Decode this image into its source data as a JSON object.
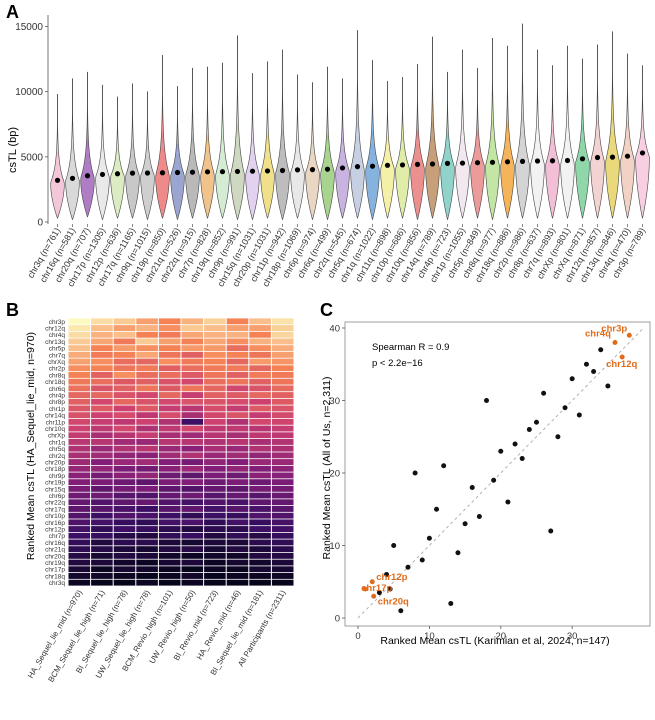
{
  "chart_data": [
    {
      "panel": "A",
      "type": "violin",
      "ylabel": "csTL (bp)",
      "xlabel": "",
      "ylim": [
        0,
        15500
      ],
      "yticks": [
        0,
        5000,
        10000,
        15000
      ],
      "categories": [
        "chr3q (n=761)",
        "chr16q (n=581)",
        "chr20q (n=707)",
        "chr17p (n=1305)",
        "chr12p (n=636)",
        "chr17q (n=1165)",
        "chr9q (n=1015)",
        "chr19p (n=850)",
        "chr21q (n=526)",
        "chr22q (n=915)",
        "chr7p (n=828)",
        "chr19q (n=852)",
        "chr9p (n=991)",
        "chr15q (n=1031)",
        "chr20p (n=1031)",
        "chr11p (n=942)",
        "chr18p (n=1069)",
        "chr6p (n=974)",
        "chr6q (n=499)",
        "chr2q (n=545)",
        "chr5q (n=674)",
        "chr1q (n=1022)",
        "chr11q (n=898)",
        "chr10p (n=686)",
        "chr10q (n=856)",
        "chr14q (n=789)",
        "chr4p (n=723)",
        "chr1p (n=1055)",
        "chr5p (n=849)",
        "chr8q (n=977)",
        "chr18q (n=886)",
        "chr2p (n=986)",
        "chr8p (n=637)",
        "chr7q (n=893)",
        "chrXp (n=801)",
        "chrXq (n=871)",
        "chr12q (n=857)",
        "chr13q (n=846)",
        "chr4q (n=470)",
        "chr3p (n=789)"
      ],
      "colors": [
        "#f4c6da",
        "#d9d9d9",
        "#b07cc6",
        "#e9e9e9",
        "#dcecc2",
        "#c8c8c8",
        "#cfcfcf",
        "#ef8a8a",
        "#9aa6d1",
        "#b9b9b9",
        "#f0c38a",
        "#d4ecd4",
        "#cfd8c0",
        "#e2d2ef",
        "#f0e08a",
        "#bdbdbd",
        "#e8e8e8",
        "#e9d7c4",
        "#a9d48f",
        "#c9b3e0",
        "#c6d0e2",
        "#86b3de",
        "#f4f0a8",
        "#e0eda8",
        "#ec8f8f",
        "#c7a07a",
        "#8fd3cb",
        "#f2e8f0",
        "#ec9a9a",
        "#c4e6a4",
        "#f6b45a",
        "#d4d4d4",
        "#f2f2f2",
        "#f3bfd6",
        "#f2f2f2",
        "#8fd6a9",
        "#f3d2d2",
        "#e9d97a",
        "#f2d2c4",
        "#f7cfe0"
      ],
      "medians": [
        3200,
        3350,
        3550,
        3650,
        3700,
        3750,
        3760,
        3780,
        3800,
        3820,
        3850,
        3860,
        3880,
        3900,
        3920,
        3950,
        4000,
        4020,
        4050,
        4150,
        4250,
        4280,
        4350,
        4380,
        4420,
        4450,
        4500,
        4520,
        4550,
        4580,
        4620,
        4650,
        4680,
        4700,
        4720,
        4850,
        4950,
        4980,
        5050,
        5300
      ],
      "max": [
        9800,
        11000,
        11500,
        10500,
        9600,
        10600,
        10000,
        12800,
        10400,
        11800,
        11900,
        12200,
        14300,
        11400,
        12300,
        13200,
        11300,
        10700,
        11900,
        11000,
        14700,
        12400,
        10800,
        11100,
        12100,
        14200,
        11500,
        13200,
        11800,
        14100,
        13500,
        15200,
        13200,
        12000,
        13500,
        12500,
        13600,
        14600,
        12900,
        12000
      ],
      "min": [
        300,
        200,
        400,
        200,
        300,
        300,
        200,
        300,
        200,
        300,
        300,
        300,
        200,
        200,
        300,
        200,
        300,
        200,
        200,
        300,
        300,
        200,
        300,
        300,
        200,
        300,
        200,
        300,
        300,
        200,
        300,
        300,
        300,
        300,
        300,
        300,
        300,
        300,
        300,
        300
      ]
    },
    {
      "panel": "B",
      "type": "heatmap",
      "ylabel": "Ranked Mean csTL (HA_Sequel_lie_mid, n=970)",
      "rows": [
        "chr3p",
        "chr12q",
        "chr4q",
        "chr13q",
        "chr5p",
        "chr7q",
        "chrXq",
        "chr2p",
        "chr8q",
        "chr18q",
        "chr6q",
        "chr4p",
        "chr8p",
        "chr1p",
        "chr14q",
        "chr11p",
        "chr10q",
        "chrXp",
        "chr1q",
        "chr5q",
        "chr2q",
        "chr20p",
        "chr18p",
        "chr9p",
        "chr19p",
        "chr15q",
        "chr6p",
        "chr22q",
        "chr17q",
        "chr10p",
        "chr16p",
        "chr12p",
        "chr7p",
        "chr16q",
        "chr21q",
        "chr20q",
        "chr19q",
        "chr17p",
        "chr18q",
        "chr3q"
      ],
      "columns": [
        "HA_Sequel_lie_mid (n=970)",
        "BCM_Sequel_lie_high (n=71)",
        "BI_Sequel_lie_high (n=78)",
        "UW_Sequel_lie_high (n=78)",
        "BCM_Revio_high (n=101)",
        "UW_Revio_high (n=50)",
        "BI_Revio_mid (n=723)",
        "HA_Revio_mid (n=46)",
        "BI_Sequel_lie_mid (n=181)",
        "All Participants (n=2311)"
      ],
      "values": [
        [
          1.0,
          0.95,
          0.92,
          0.85,
          0.8,
          0.88,
          0.93,
          0.8,
          0.9,
          0.96
        ],
        [
          0.97,
          0.9,
          0.85,
          0.88,
          0.82,
          0.92,
          0.9,
          0.85,
          0.85,
          0.93
        ],
        [
          0.95,
          0.88,
          0.9,
          0.8,
          0.78,
          0.86,
          0.88,
          0.88,
          0.8,
          0.94
        ],
        [
          0.92,
          0.86,
          0.78,
          0.92,
          0.85,
          0.8,
          0.86,
          0.82,
          0.88,
          0.9
        ],
        [
          0.9,
          0.8,
          0.84,
          0.82,
          0.8,
          0.84,
          0.84,
          0.74,
          0.82,
          0.87
        ],
        [
          0.87,
          0.78,
          0.8,
          0.86,
          0.76,
          0.7,
          0.82,
          0.8,
          0.76,
          0.85
        ],
        [
          0.85,
          0.82,
          0.74,
          0.72,
          0.82,
          0.78,
          0.8,
          0.72,
          0.84,
          0.83
        ],
        [
          0.82,
          0.8,
          0.76,
          0.78,
          0.7,
          0.74,
          0.78,
          0.78,
          0.72,
          0.8
        ],
        [
          0.8,
          0.7,
          0.82,
          0.74,
          0.74,
          0.68,
          0.76,
          0.7,
          0.78,
          0.78
        ],
        [
          0.77,
          0.74,
          0.68,
          0.7,
          0.66,
          0.62,
          0.74,
          0.76,
          0.7,
          0.76
        ],
        [
          0.75,
          0.66,
          0.7,
          0.76,
          0.68,
          0.76,
          0.72,
          0.62,
          0.66,
          0.73
        ],
        [
          0.72,
          0.72,
          0.66,
          0.62,
          0.72,
          0.58,
          0.7,
          0.68,
          0.72,
          0.7
        ],
        [
          0.7,
          0.62,
          0.72,
          0.66,
          0.62,
          0.66,
          0.66,
          0.64,
          0.6,
          0.68
        ],
        [
          0.67,
          0.68,
          0.6,
          0.68,
          0.58,
          0.55,
          0.64,
          0.58,
          0.68,
          0.66
        ],
        [
          0.65,
          0.6,
          0.64,
          0.56,
          0.64,
          0.5,
          0.62,
          0.66,
          0.58,
          0.63
        ],
        [
          0.62,
          0.58,
          0.56,
          0.6,
          0.52,
          0.2,
          0.6,
          0.52,
          0.62,
          0.61
        ],
        [
          0.6,
          0.56,
          0.62,
          0.52,
          0.56,
          0.62,
          0.56,
          0.56,
          0.54,
          0.58
        ],
        [
          0.57,
          0.5,
          0.54,
          0.58,
          0.5,
          0.48,
          0.54,
          0.5,
          0.56,
          0.56
        ],
        [
          0.55,
          0.54,
          0.48,
          0.46,
          0.54,
          0.54,
          0.52,
          0.54,
          0.5,
          0.53
        ],
        [
          0.52,
          0.46,
          0.52,
          0.54,
          0.46,
          0.42,
          0.5,
          0.46,
          0.52,
          0.51
        ],
        [
          0.5,
          0.48,
          0.44,
          0.42,
          0.48,
          0.52,
          0.46,
          0.48,
          0.44,
          0.48
        ],
        [
          0.47,
          0.4,
          0.46,
          0.48,
          0.4,
          0.36,
          0.44,
          0.4,
          0.46,
          0.46
        ],
        [
          0.45,
          0.44,
          0.38,
          0.36,
          0.42,
          0.46,
          0.4,
          0.44,
          0.4,
          0.43
        ],
        [
          0.42,
          0.36,
          0.42,
          0.44,
          0.34,
          0.3,
          0.38,
          0.34,
          0.42,
          0.41
        ],
        [
          0.4,
          0.38,
          0.34,
          0.3,
          0.38,
          0.4,
          0.34,
          0.38,
          0.34,
          0.38
        ],
        [
          0.37,
          0.3,
          0.36,
          0.38,
          0.3,
          0.26,
          0.32,
          0.3,
          0.36,
          0.36
        ],
        [
          0.35,
          0.34,
          0.28,
          0.26,
          0.32,
          0.34,
          0.28,
          0.32,
          0.28,
          0.33
        ],
        [
          0.32,
          0.26,
          0.3,
          0.32,
          0.26,
          0.22,
          0.26,
          0.24,
          0.3,
          0.31
        ],
        [
          0.3,
          0.28,
          0.24,
          0.2,
          0.28,
          0.3,
          0.22,
          0.28,
          0.24,
          0.28
        ],
        [
          0.27,
          0.2,
          0.26,
          0.24,
          0.2,
          0.16,
          0.2,
          0.18,
          0.26,
          0.26
        ],
        [
          0.25,
          0.22,
          0.18,
          0.16,
          0.22,
          0.24,
          0.16,
          0.22,
          0.18,
          0.23
        ],
        [
          0.22,
          0.16,
          0.2,
          0.18,
          0.14,
          0.1,
          0.14,
          0.14,
          0.2,
          0.21
        ],
        [
          0.2,
          0.18,
          0.12,
          0.1,
          0.16,
          0.18,
          0.1,
          0.16,
          0.12,
          0.18
        ],
        [
          0.17,
          0.1,
          0.14,
          0.14,
          0.08,
          0.06,
          0.08,
          0.08,
          0.14,
          0.16
        ],
        [
          0.15,
          0.12,
          0.08,
          0.06,
          0.1,
          0.12,
          0.06,
          0.1,
          0.08,
          0.13
        ],
        [
          0.12,
          0.06,
          0.1,
          0.08,
          0.04,
          0.02,
          0.04,
          0.04,
          0.1,
          0.11
        ],
        [
          0.1,
          0.08,
          0.04,
          0.02,
          0.06,
          0.08,
          0.02,
          0.06,
          0.04,
          0.08
        ],
        [
          0.07,
          0.02,
          0.06,
          0.04,
          0.02,
          0.0,
          0.02,
          0.02,
          0.06,
          0.06
        ],
        [
          0.05,
          0.04,
          0.02,
          0.0,
          0.02,
          0.04,
          0.0,
          0.02,
          0.02,
          0.03
        ],
        [
          0.02,
          0.0,
          0.0,
          0.02,
          0.0,
          0.02,
          0.0,
          0.0,
          0.0,
          0.0
        ]
      ]
    },
    {
      "panel": "C",
      "type": "scatter",
      "xlabel": "Ranked Mean csTL (Karimian et al, 2024, n=147)",
      "ylabel": "Ranked Mean csTL (All of Us, n=2,311)",
      "xlim": [
        0,
        40
      ],
      "ylim": [
        0,
        40
      ],
      "xticks": [
        0,
        10,
        20,
        30
      ],
      "yticks": [
        0,
        10,
        20,
        30,
        40
      ],
      "annotation_lines": [
        "Spearman R = 0.9",
        "p  < 2.2e−16"
      ],
      "points": [
        [
          38,
          39
        ],
        [
          36,
          38
        ],
        [
          37,
          36
        ],
        [
          1,
          4
        ],
        [
          2,
          5
        ],
        [
          2.2,
          3
        ],
        [
          4,
          6
        ],
        [
          5,
          10
        ],
        [
          6,
          1
        ],
        [
          7,
          7
        ],
        [
          8,
          20
        ],
        [
          9,
          8
        ],
        [
          10,
          11
        ],
        [
          11,
          15
        ],
        [
          12,
          21
        ],
        [
          13,
          2
        ],
        [
          14,
          9
        ],
        [
          15,
          13
        ],
        [
          16,
          18
        ],
        [
          17,
          14
        ],
        [
          18,
          30
        ],
        [
          19,
          19
        ],
        [
          20,
          23
        ],
        [
          21,
          16
        ],
        [
          22,
          24
        ],
        [
          23,
          22
        ],
        [
          24,
          26
        ],
        [
          25,
          27
        ],
        [
          26,
          31
        ],
        [
          27,
          12
        ],
        [
          28,
          25
        ],
        [
          29,
          29
        ],
        [
          30,
          33
        ],
        [
          31,
          28
        ],
        [
          32,
          35
        ],
        [
          33,
          34
        ],
        [
          34,
          37
        ],
        [
          35,
          32
        ],
        [
          3,
          3.5
        ],
        [
          4.5,
          4
        ]
      ],
      "labels": [
        {
          "text": "chr3p",
          "point": 0
        },
        {
          "text": "chr4q",
          "point": 1
        },
        {
          "text": "chr12q",
          "point": 2
        },
        {
          "text": "chr17p",
          "point": 3
        },
        {
          "text": "chr12p",
          "point": 4
        },
        {
          "text": "chr20q",
          "point": 5
        }
      ],
      "highlight_color": "#e06c1b"
    }
  ],
  "panel_labels": {
    "a": "A",
    "b": "B",
    "c": "C"
  }
}
